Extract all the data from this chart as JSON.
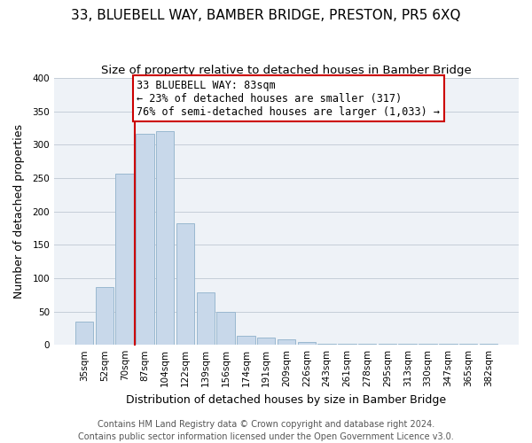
{
  "title": "33, BLUEBELL WAY, BAMBER BRIDGE, PRESTON, PR5 6XQ",
  "subtitle": "Size of property relative to detached houses in Bamber Bridge",
  "xlabel": "Distribution of detached houses by size in Bamber Bridge",
  "ylabel": "Number of detached properties",
  "footer_line1": "Contains HM Land Registry data © Crown copyright and database right 2024.",
  "footer_line2": "Contains public sector information licensed under the Open Government Licence v3.0.",
  "bar_labels": [
    "35sqm",
    "52sqm",
    "70sqm",
    "87sqm",
    "104sqm",
    "122sqm",
    "139sqm",
    "156sqm",
    "174sqm",
    "191sqm",
    "209sqm",
    "226sqm",
    "243sqm",
    "261sqm",
    "278sqm",
    "295sqm",
    "313sqm",
    "330sqm",
    "347sqm",
    "365sqm",
    "382sqm"
  ],
  "bar_values": [
    35,
    86,
    257,
    317,
    320,
    182,
    78,
    50,
    14,
    11,
    8,
    4,
    2,
    1,
    1,
    1,
    1,
    1,
    1,
    2,
    1
  ],
  "bar_color": "#c8d8ea",
  "bar_edgecolor": "#9ab8d0",
  "background_color": "#eef2f7",
  "grid_color": "#c5cdd8",
  "annotation_line_color": "#cc0000",
  "annotation_box_text_line1": "33 BLUEBELL WAY: 83sqm",
  "annotation_box_text_line2": "← 23% of detached houses are smaller (317)",
  "annotation_box_text_line3": "76% of semi-detached houses are larger (1,033) →",
  "ylim": [
    0,
    400
  ],
  "yticks": [
    0,
    50,
    100,
    150,
    200,
    250,
    300,
    350,
    400
  ],
  "title_fontsize": 11,
  "subtitle_fontsize": 9.5,
  "xlabel_fontsize": 9,
  "ylabel_fontsize": 9,
  "tick_fontsize": 7.5,
  "annotation_fontsize": 8.5,
  "footer_fontsize": 7
}
